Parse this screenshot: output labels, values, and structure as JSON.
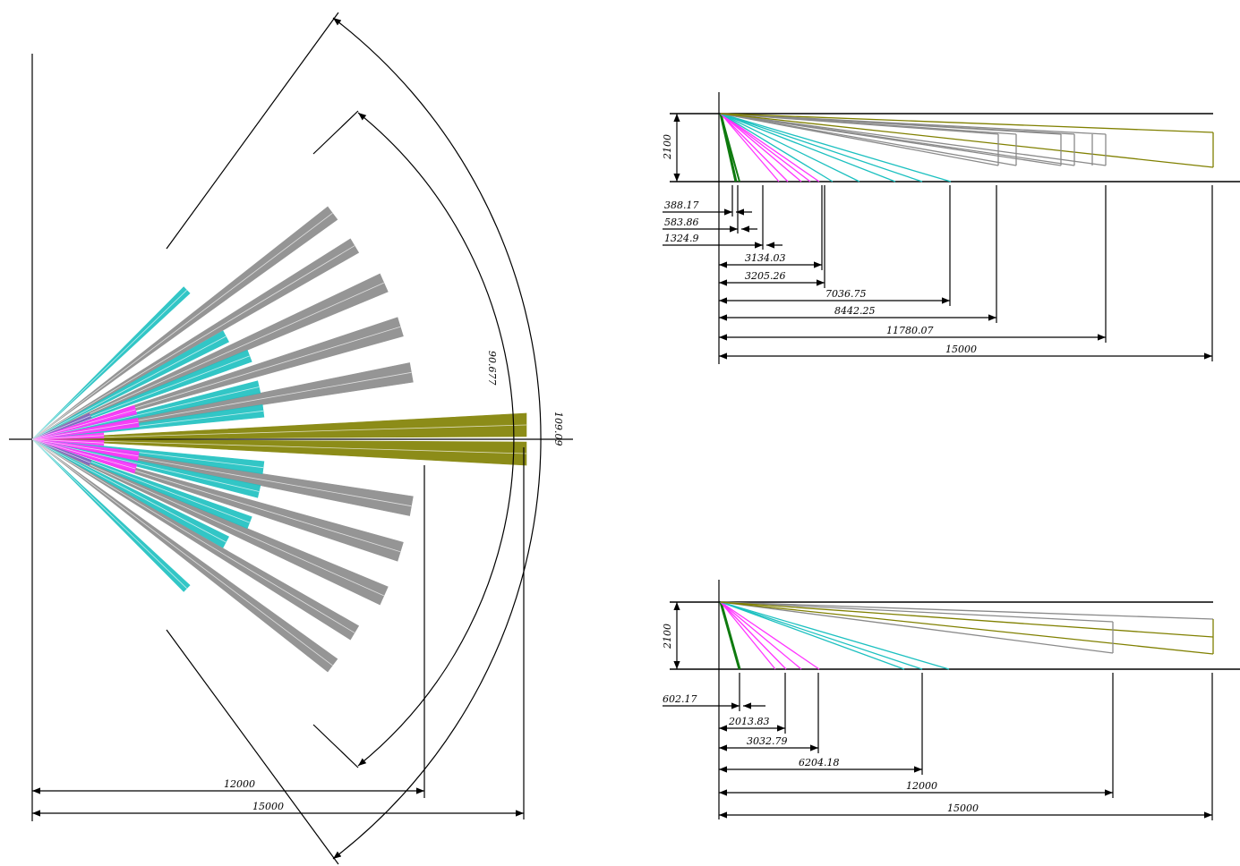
{
  "colors": {
    "line": "#000000",
    "cyan": "#1cc0c0",
    "gray": "#8a8a8a",
    "magenta": "#ff33ff",
    "olive": "#808000",
    "green": "#0e7a0e",
    "purple": "#8060c0",
    "blue": "#3060ff"
  },
  "top_view": {
    "dims": [
      "12000",
      "15000"
    ],
    "angles": [
      "90.677",
      "109.09"
    ]
  },
  "side_view_upper": {
    "height": "2100",
    "dims_small": [
      "388.17",
      "583.86",
      "1324.9"
    ],
    "dims": [
      "3134.03",
      "3205.26",
      "7036.75",
      "8442.25",
      "11780.07",
      "15000"
    ]
  },
  "side_view_lower": {
    "height": "2100",
    "dims_small": [
      "602.17"
    ],
    "dims": [
      "2013.83",
      "3032.79",
      "6204.18",
      "12000",
      "15000"
    ]
  }
}
